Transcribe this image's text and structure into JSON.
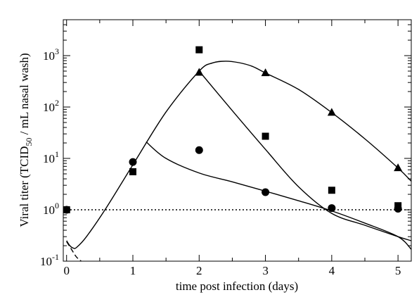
{
  "chart_data": {
    "type": "scatter",
    "xlabel": "time post infection (days)",
    "ylabel_parts": {
      "pre": "Viral titer (TCID",
      "sub": "50",
      "post": " / mL nasal wash)"
    },
    "xlim": [
      -0.05,
      5.2
    ],
    "ylim": [
      0.1,
      5000
    ],
    "yscale": "log",
    "x_ticks": [
      0,
      1,
      2,
      3,
      4,
      5
    ],
    "x_tick_labels": [
      "0",
      "1",
      "2",
      "3",
      "4",
      "5"
    ],
    "y_ticks": [
      0.1,
      1,
      10,
      100,
      1000
    ],
    "y_tick_labels": [
      {
        "base": "10",
        "exp": "-1"
      },
      {
        "base": "10",
        "exp": "0"
      },
      {
        "base": "10",
        "exp": "1"
      },
      {
        "base": "10",
        "exp": "2"
      },
      {
        "base": "10",
        "exp": "3"
      }
    ],
    "grid": false,
    "reference_line": {
      "y": 1,
      "style": "dotted"
    },
    "colors": {
      "mark": "#000000",
      "background": "#ffffff"
    },
    "series": [
      {
        "marker": "square",
        "x": [
          0,
          1,
          2,
          3,
          4,
          5
        ],
        "y": [
          1,
          5.5,
          1300,
          27,
          2.4,
          1.2
        ]
      },
      {
        "marker": "triangle",
        "x": [
          2,
          3,
          4,
          5
        ],
        "y": [
          470,
          460,
          78,
          6.5
        ]
      },
      {
        "marker": "circle",
        "x": [
          0,
          1,
          2,
          3,
          4,
          5
        ],
        "y": [
          1,
          8.5,
          14.5,
          2.2,
          1.08,
          1.05
        ]
      }
    ],
    "curves": [
      {
        "style": "solid",
        "x": [
          0,
          0.05,
          0.1,
          0.15,
          0.3,
          0.6,
          1.0,
          1.5,
          2.0,
          2.2,
          2.4,
          2.6,
          2.8,
          3.0,
          3.5,
          4.0,
          4.5,
          5.0,
          5.2
        ],
        "y": [
          0.25,
          0.2,
          0.18,
          0.185,
          0.3,
          1.1,
          7.5,
          80,
          500,
          720,
          780,
          730,
          620,
          460,
          220,
          78,
          24,
          6.5,
          3.6
        ]
      },
      {
        "style": "solid",
        "x": [
          2.0,
          2.5,
          3.0,
          3.5,
          4.0,
          4.5,
          5.0,
          5.2
        ],
        "y": [
          500,
          85,
          15,
          2.8,
          0.85,
          0.5,
          0.3,
          0.25
        ]
      },
      {
        "style": "solid",
        "x": [
          1.2,
          1.5,
          2.0,
          2.5,
          3.0,
          3.5,
          4.0,
          4.5,
          5.0,
          5.2
        ],
        "y": [
          21,
          10,
          5.2,
          3.5,
          2.3,
          1.5,
          0.95,
          0.55,
          0.3,
          0.17
        ]
      },
      {
        "style": "dashed",
        "x": [
          0,
          0.05,
          0.1,
          0.15,
          0.22,
          0.3
        ],
        "y": [
          0.24,
          0.19,
          0.15,
          0.12,
          0.1,
          0.085
        ]
      }
    ]
  }
}
